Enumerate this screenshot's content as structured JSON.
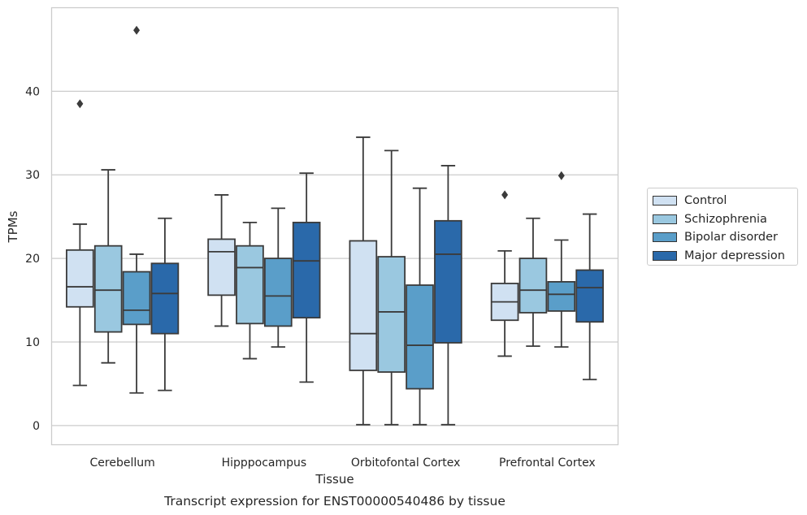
{
  "chart_data": {
    "type": "box",
    "categories": [
      "Cerebellum",
      "Hipppocampus",
      "Orbitofontal Cortex",
      "Prefrontal Cortex"
    ],
    "xlabel": "Tissue",
    "ylabel": "TPMs",
    "caption": "Transcript expression for ENST00000540486 by tissue",
    "ylim": [
      -2.3,
      50
    ],
    "yticks": [
      0,
      10,
      20,
      30,
      40
    ],
    "grid": true,
    "legend_position": "right",
    "series": [
      {
        "name": "Control",
        "color": "#d0e1f2",
        "boxes": [
          {
            "whisker_low": 4.8,
            "q1": 14.2,
            "median": 16.6,
            "q3": 21.0,
            "whisker_high": 24.1,
            "outliers": [
              38.5
            ]
          },
          {
            "whisker_low": 11.9,
            "q1": 15.6,
            "median": 20.8,
            "q3": 22.3,
            "whisker_high": 27.6,
            "outliers": []
          },
          {
            "whisker_low": 0.1,
            "q1": 6.6,
            "median": 11.0,
            "q3": 22.1,
            "whisker_high": 34.5,
            "outliers": []
          },
          {
            "whisker_low": 8.3,
            "q1": 12.6,
            "median": 14.8,
            "q3": 17.0,
            "whisker_high": 20.9,
            "outliers": [
              27.6
            ]
          }
        ]
      },
      {
        "name": "Schizophrenia",
        "color": "#9ac8e0",
        "boxes": [
          {
            "whisker_low": 7.5,
            "q1": 11.2,
            "median": 16.2,
            "q3": 21.5,
            "whisker_high": 30.6,
            "outliers": []
          },
          {
            "whisker_low": 8.0,
            "q1": 12.2,
            "median": 18.9,
            "q3": 21.5,
            "whisker_high": 24.3,
            "outliers": []
          },
          {
            "whisker_low": 0.1,
            "q1": 6.4,
            "median": 13.6,
            "q3": 20.2,
            "whisker_high": 32.9,
            "outliers": []
          },
          {
            "whisker_low": 9.5,
            "q1": 13.5,
            "median": 16.2,
            "q3": 20.0,
            "whisker_high": 24.8,
            "outliers": []
          }
        ]
      },
      {
        "name": "Bipolar disorder",
        "color": "#5a9ec9",
        "boxes": [
          {
            "whisker_low": 3.9,
            "q1": 12.1,
            "median": 13.8,
            "q3": 18.4,
            "whisker_high": 20.5,
            "outliers": [
              47.3
            ]
          },
          {
            "whisker_low": 9.4,
            "q1": 11.9,
            "median": 15.5,
            "q3": 20.0,
            "whisker_high": 26.0,
            "outliers": []
          },
          {
            "whisker_low": 0.1,
            "q1": 4.4,
            "median": 9.6,
            "q3": 16.8,
            "whisker_high": 28.4,
            "outliers": []
          },
          {
            "whisker_low": 9.4,
            "q1": 13.7,
            "median": 15.7,
            "q3": 17.2,
            "whisker_high": 22.2,
            "outliers": [
              29.9
            ]
          }
        ]
      },
      {
        "name": "Major depression",
        "color": "#2a69aa",
        "boxes": [
          {
            "whisker_low": 4.2,
            "q1": 11.0,
            "median": 15.8,
            "q3": 19.4,
            "whisker_high": 24.8,
            "outliers": []
          },
          {
            "whisker_low": 5.2,
            "q1": 12.9,
            "median": 19.7,
            "q3": 24.3,
            "whisker_high": 30.2,
            "outliers": []
          },
          {
            "whisker_low": 0.1,
            "q1": 9.9,
            "median": 20.5,
            "q3": 24.5,
            "whisker_high": 31.1,
            "outliers": []
          },
          {
            "whisker_low": 5.5,
            "q1": 12.4,
            "median": 16.5,
            "q3": 18.6,
            "whisker_high": 25.3,
            "outliers": []
          }
        ]
      }
    ]
  }
}
